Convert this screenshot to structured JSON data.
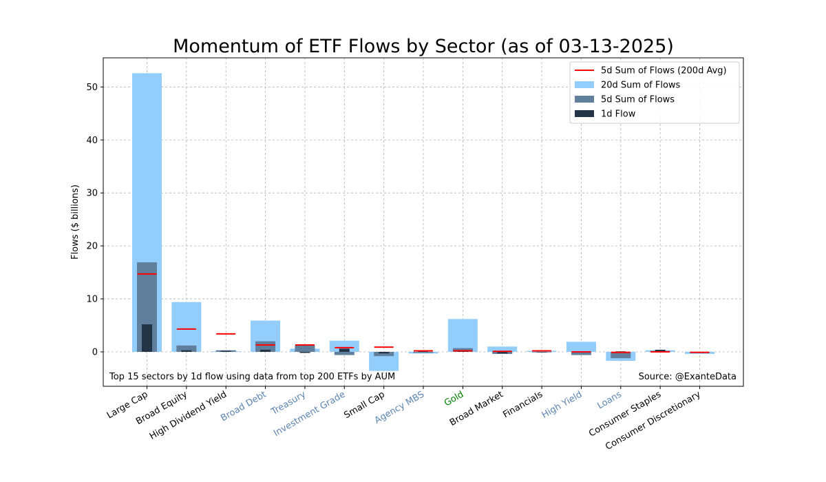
{
  "chart_data": {
    "type": "bar",
    "title": "Momentum of ETF Flows by Sector (as of 03-13-2025)",
    "xlabel": "",
    "ylabel": "Flows ($ billions)",
    "ylim": [
      -6.5,
      55.5
    ],
    "yticks": [
      0,
      10,
      20,
      30,
      40,
      50
    ],
    "grid": true,
    "legend_position": "top-right",
    "categories": [
      "Large Cap",
      "Broad Equity",
      "High Dividend Yield",
      "Broad Debt",
      "Treasury",
      "Investment Grade",
      "Small Cap",
      "Agency MBS",
      "Gold",
      "Broad Market",
      "Financials",
      "High Yield",
      "Loans",
      "Consumer Staples",
      "Consumer Discretionary"
    ],
    "category_colors": [
      "#000000",
      "#000000",
      "#000000",
      "#5b84b1",
      "#5b84b1",
      "#5b84b1",
      "#000000",
      "#5b84b1",
      "#008000",
      "#000000",
      "#000000",
      "#5b84b1",
      "#5b84b1",
      "#000000",
      "#000000"
    ],
    "series": [
      {
        "name": "20d Sum of Flows",
        "color": "#93cdfc",
        "values": [
          52.6,
          9.4,
          0.1,
          5.9,
          0.6,
          2.1,
          -3.6,
          -0.3,
          6.2,
          1.0,
          0.2,
          1.9,
          -1.7,
          0.3,
          -0.4
        ]
      },
      {
        "name": "5d Sum of Flows",
        "color": "#5f7f9c",
        "values": [
          16.9,
          1.2,
          0.3,
          2.0,
          1.2,
          -0.6,
          -0.8,
          -0.2,
          0.7,
          -0.4,
          0.0,
          -0.6,
          -1.2,
          0.2,
          -0.2
        ]
      },
      {
        "name": "1d Flow",
        "color": "#243447",
        "values": [
          5.2,
          0.3,
          0.2,
          0.4,
          -0.2,
          0.6,
          -0.3,
          0.3,
          0.3,
          -0.3,
          0.0,
          -0.1,
          0.1,
          0.4,
          -0.1
        ]
      },
      {
        "name": "5d Sum of Flows (200d Avg)",
        "color": "#ff0000",
        "values": [
          14.7,
          4.3,
          3.4,
          1.3,
          1.3,
          0.8,
          0.9,
          0.2,
          0.2,
          0.1,
          0.2,
          0.0,
          -0.1,
          0.0,
          -0.1
        ]
      }
    ],
    "annotations": [
      {
        "text": "Top 15 sectors by 1d flow using data from top 200 ETFs by AUM",
        "position": "bottom-left"
      },
      {
        "text": "Source: @ExanteData",
        "position": "bottom-right"
      }
    ]
  }
}
